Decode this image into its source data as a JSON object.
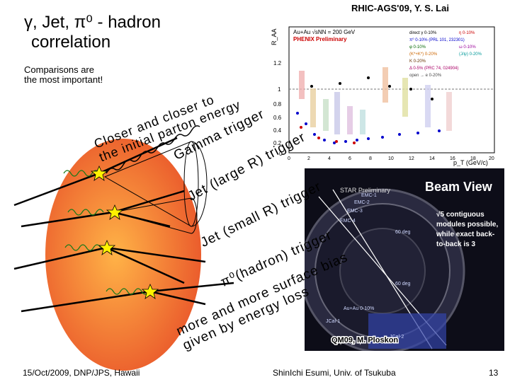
{
  "slide": {
    "title_line1": "γ, Jet, π⁰ - hadron",
    "title_line2": "correlation",
    "comparison_line1": "Comparisons are",
    "comparison_line2": "the most important!",
    "header_right": "RHIC-AGS'09, Y. S. Lai",
    "annotations": {
      "closer_line1": "Closer and closer to",
      "closer_line2": "the initial parton energy",
      "gamma": "Gamma trigger",
      "jet_large": "Jet (large R) trigger",
      "jet_small": "Jet (small R) trigger",
      "pi0_hadron": "π⁰(hadron) trigger",
      "bias_line1": "more and more surface bias",
      "bias_line2": "given by energy loss"
    },
    "footer_left": "15/Oct/2009, DNP/JPS, Hawaii",
    "footer_center": "ShinIchi Esumi, Univ. of Tsukuba",
    "page_number": "13"
  },
  "raa_plot": {
    "ylabel": "R_AA",
    "xlabel": "p_T (GeV/c)",
    "header_line1": "Au+Au √sNN = 200 GeV",
    "header_line2": "PHENIX Preliminary",
    "ticks_y": [
      "1.2",
      "1",
      "0.8",
      "0.6",
      "0.4",
      "0.2",
      "0"
    ],
    "ticks_x": [
      "0",
      "2",
      "4",
      "6",
      "8",
      "10",
      "12",
      "14",
      "16",
      "18",
      "20"
    ],
    "legend": [
      "direct γ 0-10%",
      "η 0-10%",
      "π⁰ 0-10% (PRL 101, 232301)",
      "φ 0-10%",
      "ω 0-10%",
      "(K*+K*) 0-20%",
      "(J/ψ) 0-20%",
      "K 0-20%",
      "Δ 0-5% (PRC 74, 024904)",
      "open → e 0-20%"
    ]
  },
  "beam_view": {
    "title": "Beam View",
    "label_star": "STAR Preliminary",
    "note_line1": "√5 contiguous",
    "note_line2": "modules possible,",
    "note_line3": "while exact back-",
    "note_line4": "to-back is 3",
    "labels": [
      "EMC-1",
      "EMC-2",
      "EMC-3",
      "EMC-4",
      "60 deg",
      "60 deg",
      "Au+Au 0-10%",
      "JCal-1",
      "JCal-2"
    ],
    "caption": "QM09, M. Ploskon"
  },
  "colors": {
    "blob_center": "#ffb347",
    "blob_edge": "#e9552a",
    "star": "#fff200",
    "beam_bg": "#1a1a2a",
    "beam_title": "#ffffff"
  }
}
